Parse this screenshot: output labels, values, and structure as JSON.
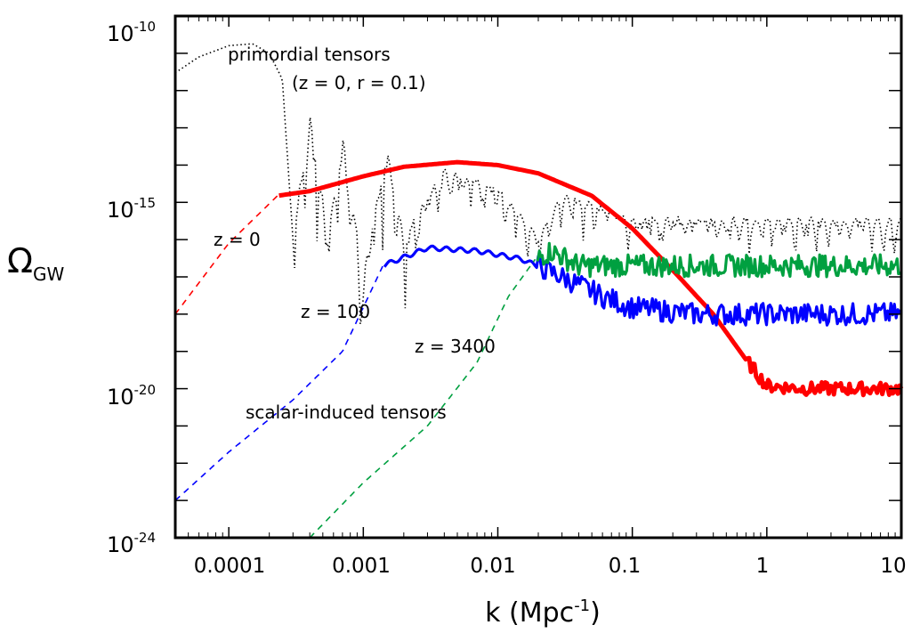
{
  "chart_data": {
    "type": "line",
    "xscale": "log",
    "yscale": "log",
    "xlim": [
      4e-05,
      10
    ],
    "ylim": [
      1e-24,
      1e-10
    ],
    "xlabel": {
      "main": "k (Mpc",
      "sup": "-1",
      "close": ")"
    },
    "ylabel": {
      "main": "Ω",
      "sub": "GW"
    },
    "x_ticks": [
      {
        "value": 0.0001,
        "label": "0.0001"
      },
      {
        "value": 0.001,
        "label": "0.001"
      },
      {
        "value": 0.01,
        "label": "0.01"
      },
      {
        "value": 0.1,
        "label": "0.1"
      },
      {
        "value": 1,
        "label": "1"
      },
      {
        "value": 10,
        "label": "10"
      }
    ],
    "y_ticks": [
      {
        "value": 1e-10,
        "base": "10",
        "exp": "-10"
      },
      {
        "value": 1e-15,
        "base": "10",
        "exp": "-15"
      },
      {
        "value": 1e-20,
        "base": "10",
        "exp": "-20"
      },
      {
        "value": 1e-24,
        "base": "10",
        "exp": "-24"
      }
    ],
    "annotations": [
      {
        "id": "primordial",
        "text": "primordial tensors"
      },
      {
        "id": "primordial_params",
        "text": "(z = 0, r = 0.1)"
      },
      {
        "id": "z0",
        "text": "z = 0"
      },
      {
        "id": "z100",
        "text": "z = 100"
      },
      {
        "id": "z3400",
        "text": "z = 3400"
      },
      {
        "id": "scalar",
        "text": "scalar-induced tensors"
      }
    ],
    "series": [
      {
        "id": "primordial",
        "color": "#000000",
        "style": "dotted",
        "points": [
          [
            4e-05,
            3e-12
          ],
          [
            6e-05,
            8e-12
          ],
          [
            0.0001,
            1.6e-11
          ],
          [
            0.00015,
            1.8e-11
          ],
          [
            0.0002,
            1e-11
          ],
          [
            0.00025,
            2e-12
          ],
          [
            0.0003,
            1e-16
          ],
          [
            0.0004,
            2e-13
          ],
          [
            0.00055,
            1e-16
          ],
          [
            0.0007,
            5e-14
          ],
          [
            0.001,
            1e-17
          ],
          [
            0.0015,
            2e-14
          ],
          [
            0.002,
            1e-16
          ],
          [
            0.004,
            6e-15
          ],
          [
            0.01,
            2e-15
          ],
          [
            0.02,
            1e-16
          ],
          [
            0.03,
            1.5e-15
          ],
          [
            0.1,
            3e-16
          ],
          [
            0.3,
            3e-16
          ],
          [
            1,
            3e-16
          ],
          [
            10,
            3e-16
          ]
        ]
      },
      {
        "id": "z0",
        "color": "#ff0000",
        "style": "solid",
        "dashed_below": 0.00023,
        "points": [
          [
            4e-05,
            1e-18
          ],
          [
            0.0001,
            8e-17
          ],
          [
            0.00023,
            1.5e-15
          ],
          [
            0.0004,
            2e-15
          ],
          [
            0.001,
            5e-15
          ],
          [
            0.002,
            9e-15
          ],
          [
            0.005,
            1.2e-14
          ],
          [
            0.01,
            1e-14
          ],
          [
            0.02,
            6e-15
          ],
          [
            0.05,
            1.5e-15
          ],
          [
            0.1,
            2e-16
          ],
          [
            0.2,
            1.5e-17
          ],
          [
            0.4,
            1e-18
          ],
          [
            0.7,
            6e-20
          ],
          [
            1,
            1.2e-20
          ],
          [
            2,
            1e-20
          ],
          [
            5,
            1e-20
          ],
          [
            10,
            1e-20
          ]
        ]
      },
      {
        "id": "z100",
        "color": "#0000ff",
        "style": "solid",
        "dashed_below": 0.0014,
        "points": [
          [
            4e-05,
            1e-23
          ],
          [
            0.0001,
            2e-22
          ],
          [
            0.0003,
            5e-21
          ],
          [
            0.0007,
            1e-19
          ],
          [
            0.0014,
            2e-17
          ],
          [
            0.003,
            6e-17
          ],
          [
            0.007,
            5e-17
          ],
          [
            0.015,
            3e-17
          ],
          [
            0.03,
            1e-17
          ],
          [
            0.06,
            3e-18
          ],
          [
            0.1,
            1.5e-18
          ],
          [
            0.3,
            1e-18
          ],
          [
            1,
            1e-18
          ],
          [
            10,
            1e-18
          ]
        ]
      },
      {
        "id": "z3400",
        "color": "#00a040",
        "style": "solid",
        "dashed_below": 0.019,
        "points": [
          [
            0.0004,
            1e-24
          ],
          [
            0.001,
            3e-23
          ],
          [
            0.003,
            1e-21
          ],
          [
            0.007,
            5e-20
          ],
          [
            0.012,
            3e-18
          ],
          [
            0.019,
            3e-17
          ],
          [
            0.025,
            5e-17
          ],
          [
            0.04,
            2e-17
          ],
          [
            0.1,
            2e-17
          ],
          [
            1,
            2e-17
          ],
          [
            10,
            2e-17
          ]
        ]
      }
    ]
  }
}
